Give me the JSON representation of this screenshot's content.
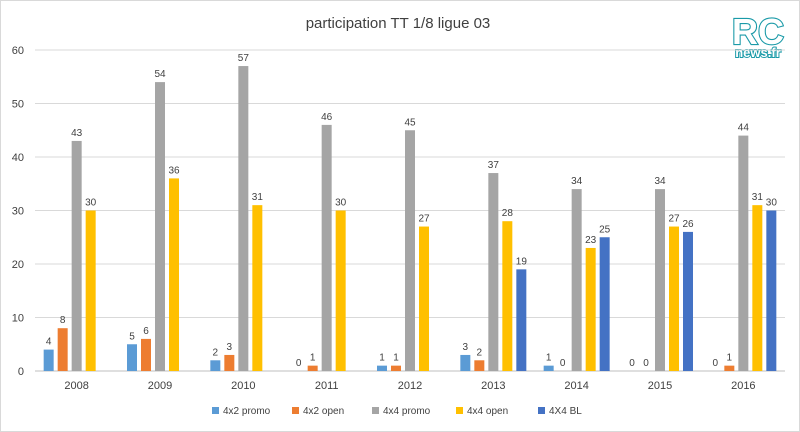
{
  "logo": {
    "top": "RC",
    "bottom": "news.fr"
  },
  "colors": {
    "4x2 promo": "#5b9bd5",
    "4x2 open": "#ed7d31",
    "4x4 promo": "#a5a5a5",
    "4x4 open": "#ffc000",
    "4X4 BL": "#4472c4",
    "grid": "#d9d9d9",
    "axis": "#bfbfbf"
  },
  "chart_data": {
    "type": "bar",
    "title": "participation TT 1/8 ligue 03",
    "xlabel": "",
    "ylabel": "",
    "ylim": [
      0,
      60
    ],
    "yticks": [
      0,
      10,
      20,
      30,
      40,
      50,
      60
    ],
    "grid": true,
    "legend_position": "bottom",
    "categories": [
      "2008",
      "2009",
      "2010",
      "2011",
      "2012",
      "2013",
      "2014",
      "2015",
      "2016"
    ],
    "series": [
      {
        "name": "4x2 promo",
        "values": [
          4,
          5,
          2,
          0,
          1,
          3,
          1,
          0,
          0
        ]
      },
      {
        "name": "4x2 open",
        "values": [
          8,
          6,
          3,
          1,
          1,
          2,
          0,
          0,
          1
        ]
      },
      {
        "name": "4x4 promo",
        "values": [
          43,
          54,
          57,
          46,
          45,
          37,
          34,
          34,
          44
        ]
      },
      {
        "name": "4x4 open",
        "values": [
          30,
          36,
          31,
          30,
          27,
          28,
          23,
          27,
          31
        ]
      },
      {
        "name": "4X4 BL",
        "values": [
          null,
          null,
          null,
          null,
          null,
          19,
          25,
          26,
          30
        ]
      }
    ]
  }
}
